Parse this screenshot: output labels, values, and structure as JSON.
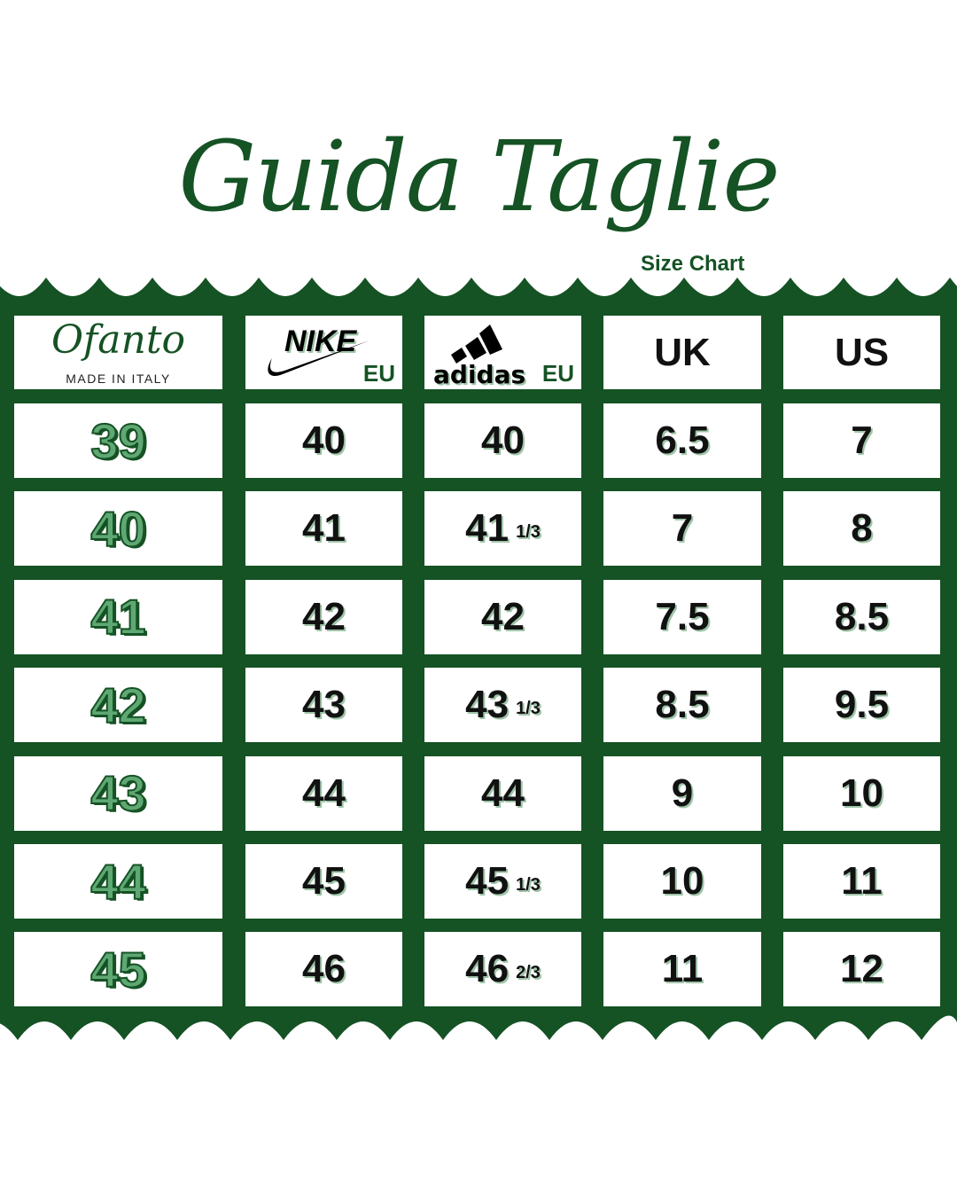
{
  "title": "Guida Taglie",
  "subtitle": "Size Chart",
  "colors": {
    "brand_green": "#155224",
    "light_green": "#5fa874"
  },
  "header": {
    "ofanto": {
      "logo": "Ofanto",
      "tagline": "MADE IN ITALY"
    },
    "nike": {
      "logo": "NIKE",
      "suffix": "EU"
    },
    "adidas": {
      "logo": "adidas",
      "suffix": "EU"
    },
    "uk": "UK",
    "us": "US"
  },
  "rows": [
    {
      "ofanto": "39",
      "nike": "40",
      "adidas": "40",
      "adidas_frac": "",
      "uk": "6.5",
      "us": "7"
    },
    {
      "ofanto": "40",
      "nike": "41",
      "adidas": "41",
      "adidas_frac": "1/3",
      "uk": "7",
      "us": "8"
    },
    {
      "ofanto": "41",
      "nike": "42",
      "adidas": "42",
      "adidas_frac": "",
      "uk": "7.5",
      "us": "8.5"
    },
    {
      "ofanto": "42",
      "nike": "43",
      "adidas": "43",
      "adidas_frac": "1/3",
      "uk": "8.5",
      "us": "9.5"
    },
    {
      "ofanto": "43",
      "nike": "44",
      "adidas": "44",
      "adidas_frac": "",
      "uk": "9",
      "us": "10"
    },
    {
      "ofanto": "44",
      "nike": "45",
      "adidas": "45",
      "adidas_frac": "1/3",
      "uk": "10",
      "us": "11"
    },
    {
      "ofanto": "45",
      "nike": "46",
      "adidas": "46",
      "adidas_frac": "2/3",
      "uk": "11",
      "us": "12"
    }
  ]
}
